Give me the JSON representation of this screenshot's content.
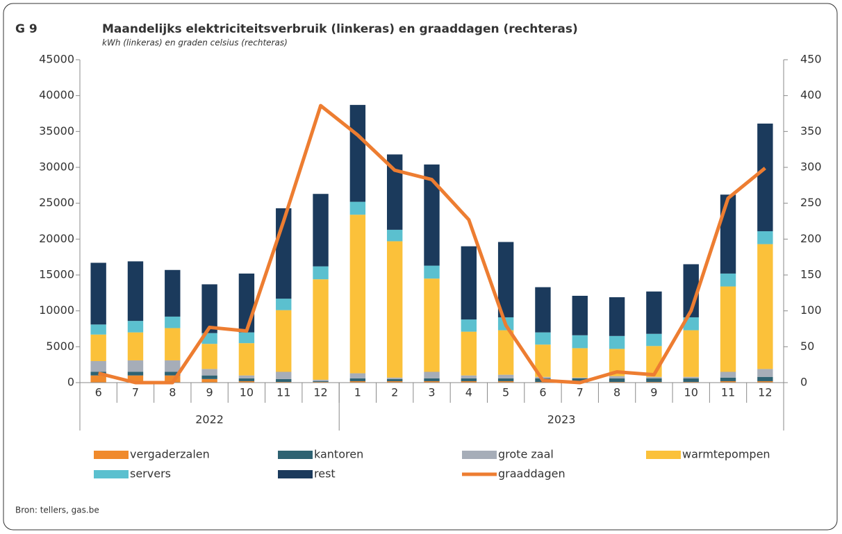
{
  "chart_data": {
    "type": "bar",
    "label": "G 9",
    "title": "Maandelijks elektriciteitsverbruik (linkeras) en graaddagen (rechteras)",
    "subtitle": "kWh (linkeras) en graden celsius (rechteras)",
    "source": "Bron: tellers, gas.be",
    "stacked": true,
    "categories": [
      "6",
      "7",
      "8",
      "9",
      "10",
      "11",
      "12",
      "1",
      "2",
      "3",
      "4",
      "5",
      "6",
      "7",
      "8",
      "9",
      "10",
      "11",
      "12"
    ],
    "groups": [
      {
        "label": "2022",
        "count": 7
      },
      {
        "label": "2023",
        "count": 12
      }
    ],
    "series": [
      {
        "name": "vergaderzalen",
        "color": "#f08a2c",
        "values": [
          1000,
          1000,
          1000,
          500,
          200,
          100,
          100,
          200,
          200,
          200,
          200,
          200,
          100,
          100,
          100,
          100,
          100,
          200,
          200
        ]
      },
      {
        "name": "kantoren",
        "color": "#2e6272",
        "values": [
          500,
          500,
          500,
          500,
          400,
          400,
          100,
          400,
          300,
          400,
          400,
          400,
          500,
          500,
          500,
          500,
          500,
          500,
          600
        ]
      },
      {
        "name": "grote zaal",
        "color": "#a6adb8",
        "values": [
          1500,
          1600,
          1600,
          900,
          400,
          1000,
          200,
          700,
          200,
          900,
          400,
          500,
          200,
          100,
          300,
          200,
          200,
          800,
          1100
        ]
      },
      {
        "name": "warmtepompen",
        "color": "#fbc13a",
        "values": [
          3700,
          3900,
          4500,
          3500,
          4500,
          8600,
          14000,
          22100,
          19000,
          13000,
          6100,
          6200,
          4500,
          4100,
          3800,
          4300,
          6500,
          11900,
          17400
        ]
      },
      {
        "name": "servers",
        "color": "#5bc0cf",
        "values": [
          1400,
          1600,
          1600,
          1500,
          1500,
          1600,
          1800,
          1800,
          1600,
          1800,
          1700,
          1800,
          1700,
          1800,
          1800,
          1700,
          1800,
          1800,
          1800
        ]
      },
      {
        "name": "rest",
        "color": "#1b3a5c",
        "values": [
          8600,
          8300,
          6500,
          6800,
          8200,
          12600,
          10100,
          13500,
          10500,
          14100,
          10200,
          10500,
          6300,
          5500,
          5400,
          5900,
          7400,
          11000,
          15000
        ]
      },
      {
        "name": "graaddagen",
        "color": "#ed7d31",
        "type": "line",
        "axis": "y2",
        "values": [
          13,
          0,
          0,
          77,
          72,
          225,
          386,
          345,
          296,
          283,
          227,
          80,
          3,
          0,
          15,
          11,
          100,
          257,
          299
        ]
      }
    ],
    "ylim": [
      0,
      45000
    ],
    "yticks": [
      0,
      5000,
      10000,
      15000,
      20000,
      25000,
      30000,
      35000,
      40000,
      45000
    ],
    "y2lim": [
      0,
      450
    ],
    "y2ticks": [
      0,
      50,
      100,
      150,
      200,
      250,
      300,
      350,
      400,
      450
    ]
  }
}
